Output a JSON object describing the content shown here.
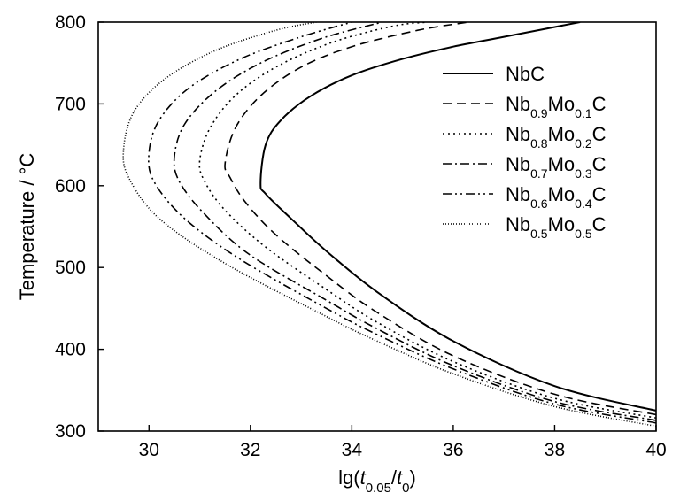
{
  "chart_data": {
    "type": "line",
    "xlabel": {
      "prefix": "lg(",
      "t1": "t",
      "s1": "0.05",
      "slash": "/",
      "t2": "t",
      "s2": "0",
      "suffix": ")"
    },
    "ylabel": "Temperature / °C",
    "xlim": [
      29,
      40
    ],
    "ylim": [
      300,
      800
    ],
    "xticks": [
      30,
      32,
      34,
      36,
      38,
      40
    ],
    "yticks": [
      300,
      400,
      500,
      600,
      700,
      800
    ],
    "grid": false,
    "legend_position": "upper right inside",
    "series": [
      {
        "name": "NbC",
        "label_parts": [
          [
            "NbC",
            ""
          ]
        ],
        "dash": "solid",
        "nose": [
          32.2,
          603
        ],
        "points": [
          [
            40.0,
            325
          ],
          [
            38.0,
            355
          ],
          [
            36.0,
            410
          ],
          [
            34.5,
            470
          ],
          [
            33.5,
            520
          ],
          [
            32.8,
            560
          ],
          [
            32.3,
            590
          ],
          [
            32.2,
            603
          ],
          [
            32.3,
            650
          ],
          [
            32.6,
            680
          ],
          [
            33.2,
            710
          ],
          [
            34.0,
            735
          ],
          [
            35.0,
            755
          ],
          [
            36.0,
            770
          ],
          [
            37.0,
            782
          ],
          [
            38.5,
            800
          ]
        ]
      },
      {
        "name": "Nb0.9Mo0.1C",
        "label_parts": [
          [
            "Nb",
            "0.9"
          ],
          [
            "Mo",
            "0.1"
          ],
          [
            "C",
            ""
          ]
        ],
        "dash": "dashed",
        "nose": [
          31.5,
          627
        ],
        "points": [
          [
            40.0,
            320
          ],
          [
            38.0,
            345
          ],
          [
            36.0,
            392
          ],
          [
            34.5,
            445
          ],
          [
            33.5,
            490
          ],
          [
            32.5,
            540
          ],
          [
            31.9,
            580
          ],
          [
            31.6,
            610
          ],
          [
            31.5,
            627
          ],
          [
            31.7,
            670
          ],
          [
            32.2,
            710
          ],
          [
            33.0,
            745
          ],
          [
            34.0,
            770
          ],
          [
            35.3,
            790
          ],
          [
            36.3,
            800
          ]
        ]
      },
      {
        "name": "Nb0.8Mo0.2C",
        "label_parts": [
          [
            "Nb",
            "0.8"
          ],
          [
            "Mo",
            "0.2"
          ],
          [
            "C",
            ""
          ]
        ],
        "dash": "dotted",
        "nose": [
          31.0,
          630
        ],
        "points": [
          [
            40.0,
            316
          ],
          [
            38.0,
            340
          ],
          [
            36.0,
            385
          ],
          [
            34.5,
            433
          ],
          [
            33.5,
            473
          ],
          [
            32.3,
            525
          ],
          [
            31.5,
            570
          ],
          [
            31.1,
            605
          ],
          [
            31.0,
            630
          ],
          [
            31.2,
            670
          ],
          [
            31.7,
            710
          ],
          [
            32.5,
            745
          ],
          [
            33.6,
            775
          ],
          [
            34.8,
            795
          ],
          [
            35.5,
            800
          ]
        ]
      },
      {
        "name": "Nb0.7Mo0.3C",
        "label_parts": [
          [
            "Nb",
            "0.7"
          ],
          [
            "Mo",
            "0.3"
          ],
          [
            "C",
            ""
          ]
        ],
        "dash": "dashdot",
        "nose": [
          30.5,
          635
        ],
        "points": [
          [
            40.0,
            313
          ],
          [
            38.0,
            336
          ],
          [
            36.0,
            380
          ],
          [
            34.5,
            425
          ],
          [
            33.5,
            460
          ],
          [
            32.0,
            515
          ],
          [
            31.1,
            565
          ],
          [
            30.6,
            605
          ],
          [
            30.5,
            635
          ],
          [
            30.7,
            675
          ],
          [
            31.3,
            715
          ],
          [
            32.2,
            750
          ],
          [
            33.4,
            780
          ],
          [
            34.6,
            800
          ]
        ]
      },
      {
        "name": "Nb0.6Mo0.4C",
        "label_parts": [
          [
            "Nb",
            "0.6"
          ],
          [
            "Mo",
            "0.4"
          ],
          [
            "C",
            ""
          ]
        ],
        "dash": "dashdotdot",
        "nose": [
          30.0,
          640
        ],
        "points": [
          [
            40.0,
            310
          ],
          [
            38.0,
            333
          ],
          [
            36.0,
            376
          ],
          [
            34.5,
            418
          ],
          [
            33.5,
            450
          ],
          [
            31.8,
            510
          ],
          [
            30.7,
            560
          ],
          [
            30.1,
            605
          ],
          [
            30.0,
            640
          ],
          [
            30.2,
            680
          ],
          [
            30.8,
            720
          ],
          [
            31.8,
            755
          ],
          [
            33.0,
            782
          ],
          [
            34.0,
            800
          ]
        ]
      },
      {
        "name": "Nb0.5Mo0.5C",
        "label_parts": [
          [
            "Nb",
            "0.5"
          ],
          [
            "Mo",
            "0.5"
          ],
          [
            "C",
            ""
          ]
        ],
        "dash": "finedot",
        "nose": [
          29.5,
          645
        ],
        "points": [
          [
            40.0,
            306
          ],
          [
            38.0,
            330
          ],
          [
            36.0,
            370
          ],
          [
            34.5,
            410
          ],
          [
            33.5,
            440
          ],
          [
            31.5,
            505
          ],
          [
            30.2,
            560
          ],
          [
            29.6,
            610
          ],
          [
            29.5,
            645
          ],
          [
            29.7,
            690
          ],
          [
            30.3,
            730
          ],
          [
            31.3,
            765
          ],
          [
            32.5,
            790
          ],
          [
            33.3,
            800
          ]
        ]
      }
    ]
  }
}
